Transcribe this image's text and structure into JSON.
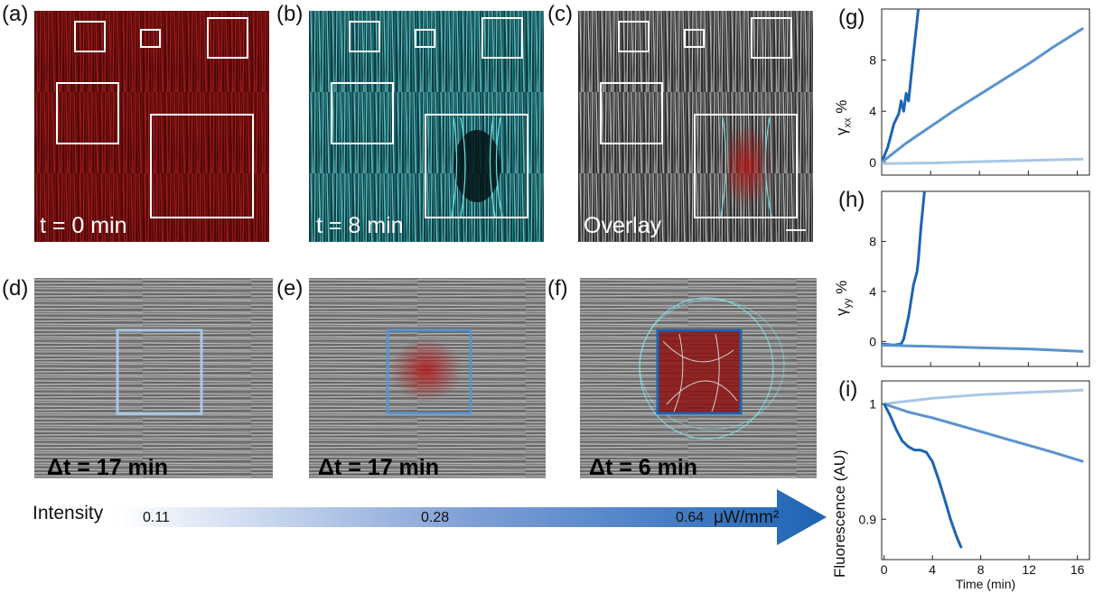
{
  "panels": {
    "a": {
      "label": "(a)",
      "caption": "t = 0 min"
    },
    "b": {
      "label": "(b)",
      "caption": "t = 8 min"
    },
    "c": {
      "label": "(c)",
      "caption": "Overlay"
    },
    "d": {
      "label": "(d)",
      "caption": "Δt = 17 min"
    },
    "e": {
      "label": "(e)",
      "caption": "Δt = 17 min"
    },
    "f": {
      "label": "(f)",
      "caption": "Δt = 6 min"
    },
    "g": {
      "label": "(g)"
    },
    "h": {
      "label": "(h)"
    },
    "i": {
      "label": "(i)"
    }
  },
  "intensity_bar": {
    "title": "Intensity",
    "values": [
      "0.11",
      "0.28",
      "0.64"
    ],
    "unit": "μW/mm²"
  },
  "colors": {
    "red": "#8a1414",
    "cyan": "#5ad6da",
    "light_blue": "#a9c6e6",
    "mid_blue": "#5a93cf",
    "dark_blue": "#1c64b4"
  },
  "chart_data": [
    {
      "id": "g",
      "type": "line",
      "ylabel_main": "γ",
      "ylabel_sub": "xx",
      "ylabel_suffix": " %",
      "xlim": [
        0,
        17
      ],
      "ylim": [
        -1,
        12
      ],
      "yticks": [
        "0",
        "4",
        "8"
      ],
      "series": [
        {
          "color": "dark",
          "x": [
            0,
            0.5,
            1,
            1.4,
            1.6,
            1.8,
            2.0,
            2.2,
            2.6,
            3.0
          ],
          "y": [
            0,
            1.2,
            3,
            3.8,
            4.8,
            4.0,
            5.4,
            4.8,
            8.5,
            12
          ]
        },
        {
          "color": "mid",
          "x": [
            0,
            2,
            4,
            6,
            8,
            10,
            12,
            14,
            16.5
          ],
          "y": [
            0,
            1.5,
            2.8,
            4.1,
            5.3,
            6.5,
            7.7,
            9.0,
            10.5
          ]
        },
        {
          "color": "light",
          "x": [
            0,
            4,
            8,
            12,
            16.5
          ],
          "y": [
            -0.1,
            -0.05,
            0.05,
            0.15,
            0.25
          ]
        }
      ]
    },
    {
      "id": "h",
      "type": "line",
      "ylabel_main": "γ",
      "ylabel_sub": "yy",
      "ylabel_suffix": " %",
      "xlim": [
        0,
        17
      ],
      "ylim": [
        -2,
        12
      ],
      "yticks": [
        "0",
        "4",
        "8"
      ],
      "series": [
        {
          "color": "dark",
          "x": [
            0,
            1,
            1.6,
            1.8,
            2.2,
            2.6,
            2.9,
            3.0,
            3.2,
            3.5
          ],
          "y": [
            -0.2,
            -0.3,
            -0.2,
            0.2,
            2,
            4.5,
            5.6,
            6.5,
            9,
            12
          ]
        },
        {
          "color": "mid",
          "x": [
            0,
            4,
            8,
            12,
            16.5
          ],
          "y": [
            -0.3,
            -0.4,
            -0.5,
            -0.6,
            -0.8
          ]
        }
      ]
    },
    {
      "id": "i",
      "type": "line",
      "ylabel_main": "Fluorescence (AU)",
      "xlabel": "Time (min)",
      "xlim": [
        -0.2,
        17
      ],
      "ylim": [
        0.865,
        1.02
      ],
      "yticks": [
        "0.9",
        "1"
      ],
      "xticks": [
        "0",
        "4",
        "8",
        "12",
        "16"
      ],
      "series": [
        {
          "color": "light",
          "x": [
            0,
            4,
            8,
            12,
            16.5
          ],
          "y": [
            1.0,
            1.005,
            1.008,
            1.01,
            1.012
          ]
        },
        {
          "color": "mid",
          "x": [
            0,
            2,
            4,
            6,
            8,
            10,
            12,
            14,
            16.5
          ],
          "y": [
            1.0,
            0.993,
            0.988,
            0.982,
            0.976,
            0.97,
            0.964,
            0.958,
            0.95
          ]
        },
        {
          "color": "dark",
          "x": [
            0,
            0.5,
            1,
            1.5,
            2,
            2.5,
            3,
            3.5,
            4,
            4.5,
            5,
            5.5,
            6,
            6.4
          ],
          "y": [
            1.0,
            0.99,
            0.978,
            0.968,
            0.963,
            0.96,
            0.96,
            0.958,
            0.95,
            0.935,
            0.918,
            0.9,
            0.885,
            0.875
          ]
        }
      ]
    }
  ]
}
